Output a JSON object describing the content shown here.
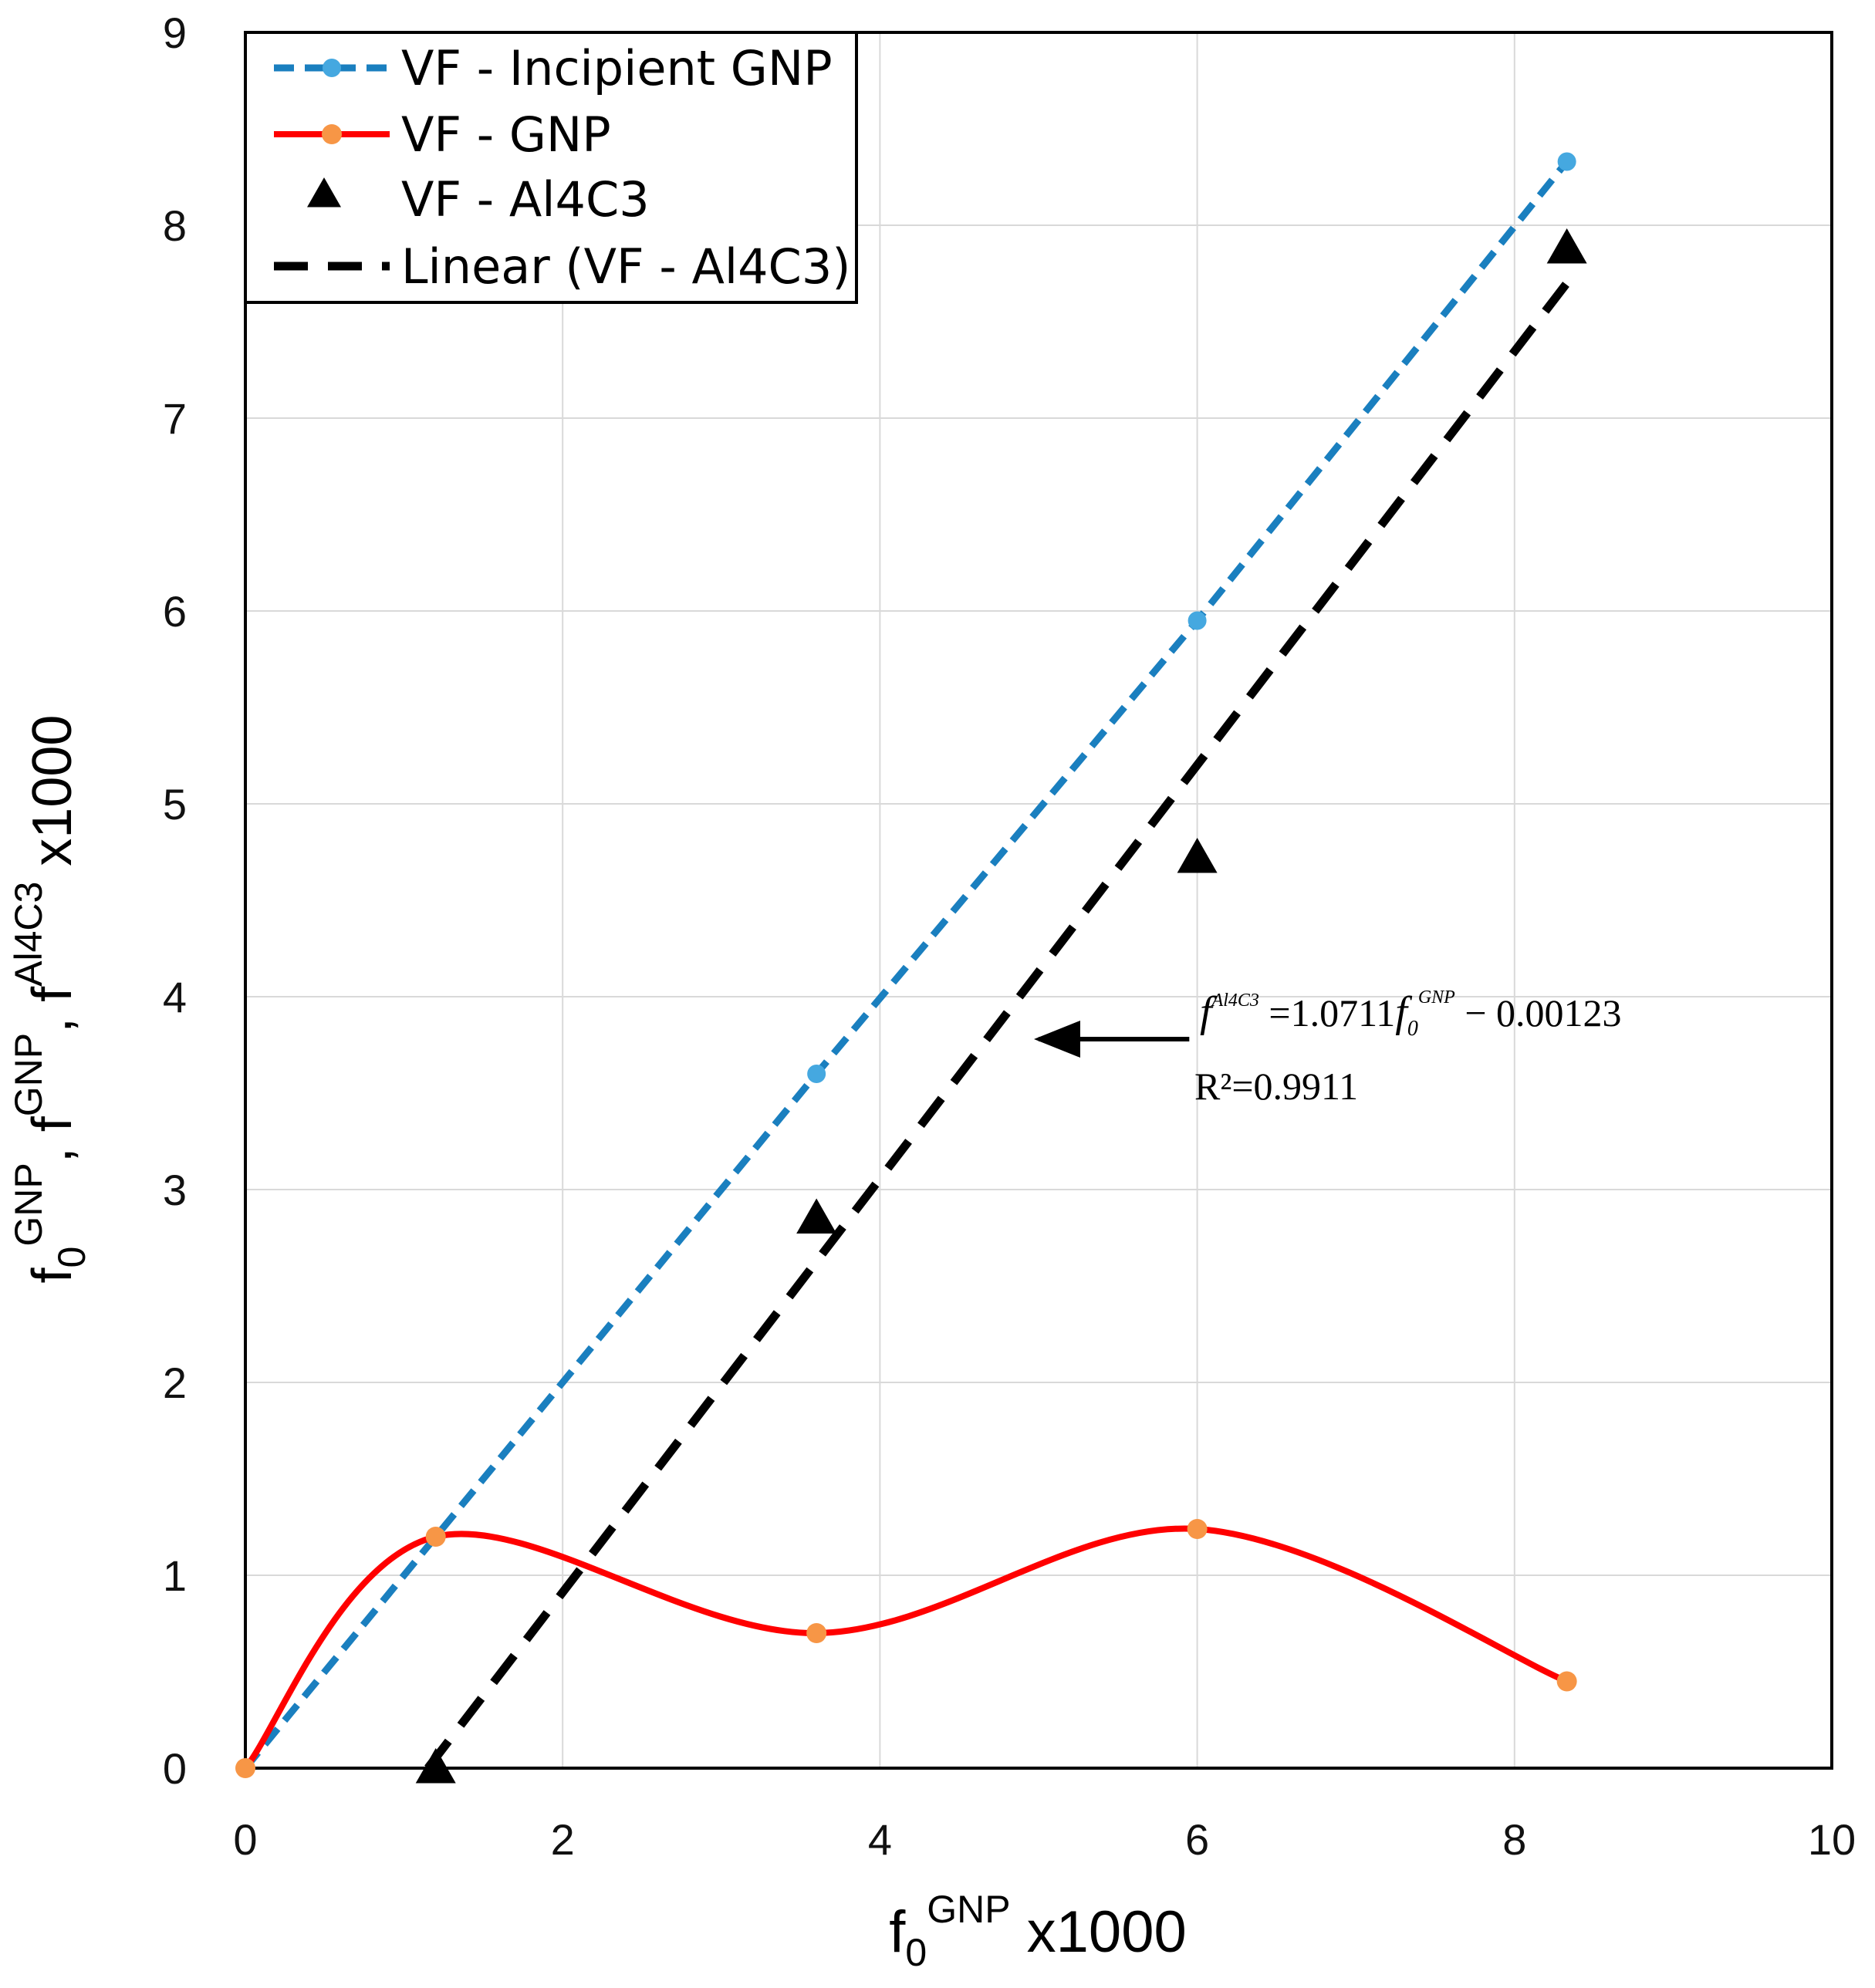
{
  "chart_data": {
    "type": "line",
    "xlabel": {
      "base": "f",
      "sub": "0",
      "sup": "GNP",
      "suffix": " x1000"
    },
    "ylabel": {
      "parts": [
        {
          "base": "f",
          "sub": "0",
          "sup": "GNP"
        },
        {
          "sep": ", "
        },
        {
          "base": "f",
          "sup": "GNP"
        },
        {
          "sep": ", "
        },
        {
          "base": "f",
          "sup": "Al4C3"
        }
      ],
      "suffix": " x1000"
    },
    "xlim": [
      0,
      10
    ],
    "ylim": [
      0,
      9
    ],
    "x_ticks": [
      0,
      2,
      4,
      6,
      8,
      10
    ],
    "y_ticks": [
      0,
      1,
      2,
      3,
      4,
      5,
      6,
      7,
      8,
      9
    ],
    "x_tick_labels": [
      "0",
      "2",
      "4",
      "6",
      "8",
      "10"
    ],
    "y_tick_labels": [
      "0",
      "1",
      "2",
      "3",
      "4",
      "5",
      "6",
      "7",
      "8",
      "9"
    ],
    "grid": true,
    "legend_position": "top-left",
    "series": [
      {
        "name": "VF - Incipient GNP",
        "style": "dashed-line-markers",
        "color": "#1a7fbf",
        "marker_color": "#45a8e0",
        "x": [
          0,
          1.2,
          3.6,
          6.0,
          8.33
        ],
        "y": [
          0,
          1.2,
          3.6,
          5.95,
          8.33
        ]
      },
      {
        "name": "VF - GNP",
        "style": "smooth-line-markers",
        "color": "#ff0000",
        "marker_color": "#f79646",
        "x": [
          0,
          1.2,
          3.6,
          6.0,
          8.33
        ],
        "y": [
          0,
          1.2,
          0.7,
          1.24,
          0.45
        ]
      },
      {
        "name": "VF - Al4C3",
        "style": "triangle-markers",
        "color": "#000000",
        "x": [
          1.2,
          3.6,
          6.0,
          8.33
        ],
        "y": [
          0,
          2.85,
          4.72,
          7.88
        ]
      },
      {
        "name": "Linear (VF - Al4C3)",
        "style": "trendline-dashed",
        "color": "#000000",
        "x": [
          1.15,
          8.33
        ],
        "y": [
          0,
          7.7
        ]
      }
    ],
    "annotation": {
      "lhs_base": "f",
      "lhs_sup": "Al4C3",
      "equals": " =",
      "coef": "1.0711",
      "rhs_base": "f",
      "rhs_sub": "0",
      "rhs_sup": "GNP",
      "intercept": " − 0.00123",
      "r2": "R²=0.9911",
      "arrow_from": [
        5.95,
        3.78
      ],
      "arrow_to": [
        5.0,
        3.78
      ]
    }
  }
}
